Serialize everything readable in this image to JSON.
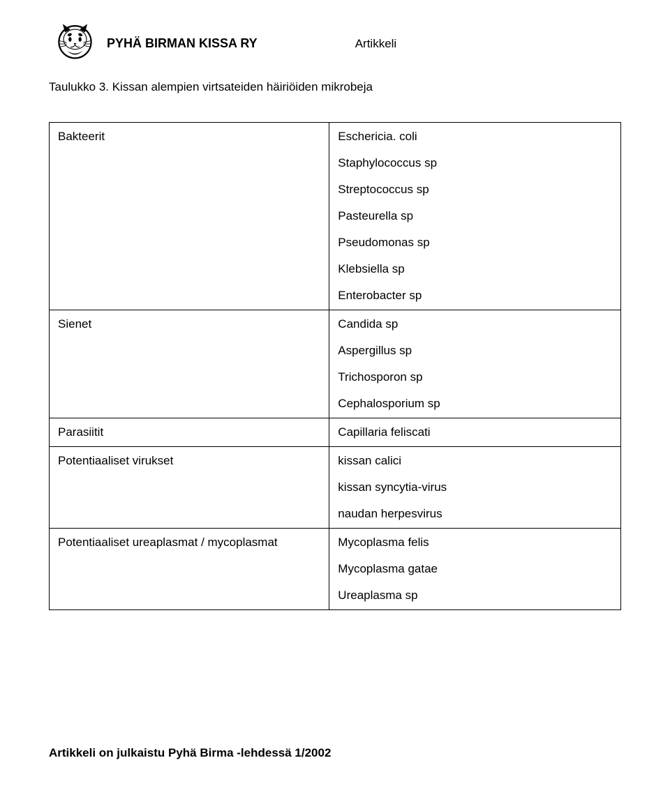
{
  "header": {
    "org_name": "PYHÄ BIRMAN KISSA RY",
    "doc_type": "Artikkeli"
  },
  "title": "Taulukko 3. Kissan alempien virtsateiden häiriöiden mikrobeja",
  "table": {
    "rows": [
      {
        "left": "Bakteerit",
        "right": [
          "Eschericia. coli",
          "Staphylococcus sp",
          "Streptococcus sp",
          "Pasteurella sp",
          "Pseudomonas sp",
          "Klebsiella sp",
          "Enterobacter sp"
        ]
      },
      {
        "left": "Sienet",
        "right": [
          "Candida sp",
          "Aspergillus sp",
          "Trichosporon sp",
          "Cephalosporium sp"
        ]
      },
      {
        "left": "Parasiitit",
        "right": [
          "Capillaria feliscati"
        ]
      },
      {
        "left": "Potentiaaliset virukset",
        "right": [
          "kissan calici",
          "kissan syncytia-virus",
          "naudan herpesvirus"
        ]
      },
      {
        "left": "Potentiaaliset ureaplasmat / mycoplasmat",
        "right": [
          "Mycoplasma felis",
          "Mycoplasma gatae",
          "Ureaplasma sp"
        ]
      }
    ]
  },
  "footer": "Artikkeli on julkaistu Pyhä Birma -lehdessä 1/2002",
  "style": {
    "page_bg": "#ffffff",
    "text_color": "#000000",
    "border_color": "#000000",
    "font_family": "Arial",
    "title_fontsize": 17,
    "cell_fontsize": 17,
    "header_fontsize": 18
  }
}
